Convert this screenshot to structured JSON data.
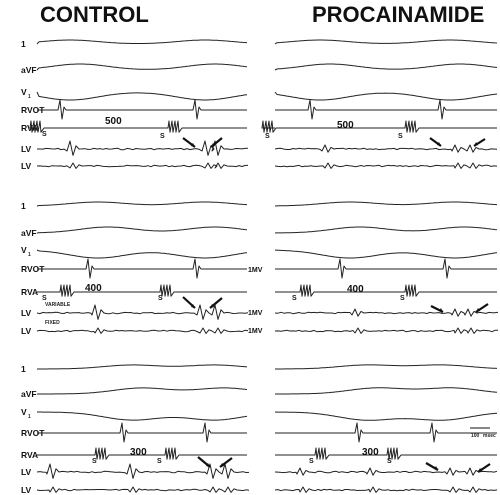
{
  "titles": {
    "left": "CONTROL",
    "right": "PROCAINAMIDE"
  },
  "leads": [
    "1",
    "aVF",
    "V",
    "RVOT",
    "RVA",
    "LV",
    "LV"
  ],
  "lead_v_subscript": "1",
  "cycle_lengths": [
    "500",
    "400",
    "300"
  ],
  "stim_label": "S",
  "calibration": {
    "mv1": "1MV",
    "mv2": "1MV",
    "mv3": "1MV"
  },
  "lv_notes": {
    "variable": "VARIABLE",
    "fixed": "FIXED"
  },
  "scale_bar": {
    "value": "100",
    "unit": "msec"
  }
}
